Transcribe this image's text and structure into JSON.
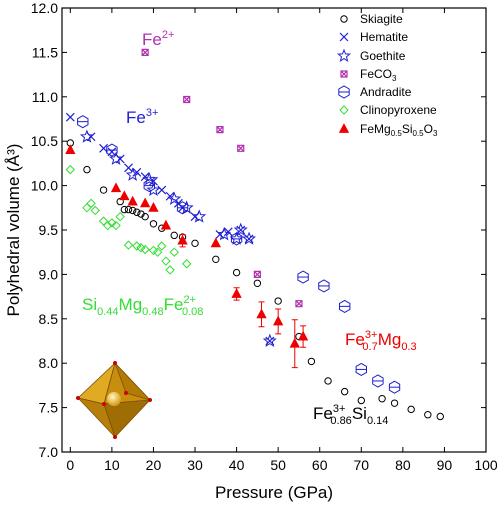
{
  "chart_data": {
    "type": "scatter",
    "xlabel": "Pressure (GPa)",
    "ylabel": "Polyhedral volume (Å³)",
    "xlim": [
      -2,
      100
    ],
    "ylim": [
      7.0,
      12.0
    ],
    "x_ticks": [
      0,
      10,
      20,
      30,
      40,
      50,
      60,
      70,
      80,
      90,
      100
    ],
    "y_ticks": [
      7.0,
      7.5,
      8.0,
      8.5,
      9.0,
      9.5,
      10.0,
      10.5,
      11.0,
      11.5,
      12.0
    ],
    "legend_position": "top-right",
    "series": [
      {
        "name": "Skiagite",
        "marker": "circle",
        "color": "#000000",
        "x": [
          0,
          4,
          8,
          12,
          13,
          14,
          15,
          16,
          17,
          18,
          20,
          22,
          25,
          27,
          30,
          35,
          40,
          45,
          50,
          55,
          58,
          62,
          66,
          70,
          75,
          78,
          82,
          86,
          89
        ],
        "y": [
          10.48,
          10.18,
          9.95,
          9.82,
          9.73,
          9.73,
          9.72,
          9.7,
          9.68,
          9.65,
          9.57,
          9.52,
          9.44,
          9.42,
          9.35,
          9.17,
          9.02,
          8.9,
          8.7,
          8.3,
          8.02,
          7.8,
          7.68,
          7.58,
          7.6,
          7.55,
          7.48,
          7.42,
          7.4
        ],
        "y_err": []
      },
      {
        "name": "Hematite",
        "marker": "x",
        "color": "#1f1fd1",
        "x": [
          0,
          5,
          8,
          10,
          12,
          14,
          16,
          18,
          20,
          22,
          24,
          26,
          27,
          30,
          36,
          38,
          41,
          43,
          48
        ],
        "y": [
          10.77,
          10.55,
          10.42,
          10.38,
          10.3,
          10.2,
          10.15,
          10.1,
          10.05,
          9.95,
          9.88,
          9.8,
          9.75,
          9.65,
          9.45,
          9.48,
          9.5,
          9.4,
          8.25
        ],
        "y_err": []
      },
      {
        "name": "Goethite",
        "marker": "star",
        "color": "#1f1fd1",
        "x": [
          4,
          11,
          15,
          19,
          20,
          25,
          28,
          31,
          37,
          40,
          41,
          43,
          48
        ],
        "y": [
          10.55,
          10.3,
          10.12,
          10.07,
          9.95,
          9.85,
          9.75,
          9.65,
          9.45,
          9.4,
          9.5,
          9.4,
          8.25
        ],
        "y_err": []
      },
      {
        "name": "FeCO₃",
        "marker": "square-x",
        "color": "#b030b0",
        "x": [
          18,
          28,
          36,
          41,
          45,
          55
        ],
        "y": [
          11.5,
          10.97,
          10.63,
          10.42,
          9.0,
          8.67
        ],
        "y_err": []
      },
      {
        "name": "Andradite",
        "marker": "hexagon",
        "color": "#1f1fd1",
        "x": [
          3,
          10,
          19,
          27,
          40,
          56,
          61,
          66,
          70,
          74,
          78
        ],
        "y": [
          10.72,
          10.4,
          10.0,
          9.75,
          9.4,
          8.97,
          8.87,
          8.64,
          7.93,
          7.8,
          7.73
        ],
        "y_err": []
      },
      {
        "name": "Clinopyroxene",
        "marker": "diamond",
        "color": "#33dd33",
        "x": [
          0,
          4,
          5,
          6,
          8,
          9,
          10,
          11,
          12,
          14,
          16,
          17,
          18,
          20,
          21,
          22,
          23,
          24,
          25,
          28
        ],
        "y": [
          10.18,
          9.75,
          9.8,
          9.72,
          9.6,
          9.55,
          9.58,
          9.55,
          9.65,
          9.33,
          9.32,
          9.3,
          9.28,
          9.27,
          9.25,
          9.32,
          9.15,
          9.05,
          9.25,
          9.12
        ],
        "y_err": []
      },
      {
        "name": "FeMg0.5Si0.5O3",
        "marker": "triangle",
        "color": "#ee0000",
        "x": [
          0,
          11,
          13,
          15,
          18,
          20,
          23,
          27,
          35,
          40,
          46,
          50,
          54,
          56
        ],
        "y": [
          10.4,
          9.97,
          9.88,
          9.82,
          9.8,
          9.75,
          9.55,
          9.38,
          9.35,
          8.78,
          8.55,
          8.47,
          8.22,
          8.3
        ],
        "y_err": [
          0,
          0,
          0,
          0,
          0,
          0,
          0,
          0.07,
          0,
          0.07,
          0.14,
          0.14,
          0.27,
          0.12
        ]
      }
    ],
    "annotations": [
      {
        "text": "Fe2+",
        "color": "#b030b0"
      },
      {
        "text": "Fe3+",
        "color": "#1f1fd1"
      },
      {
        "text": "Si0.44Mg0.48Fe2+0.08",
        "color": "#33dd33"
      },
      {
        "text": "Fe3+0.7Mg0.3",
        "color": "#ee0000"
      },
      {
        "text": "Fe3+0.86Si0.14",
        "color": "#000000"
      }
    ]
  },
  "labels": {
    "fe2": {
      "base": "Fe",
      "sup": "2+"
    },
    "fe3": {
      "base": "Fe",
      "sup": "3+"
    },
    "clino": {
      "a": "Si",
      "a_sub": "0.44",
      "b": "Mg",
      "b_sub": "0.48",
      "c": "Fe",
      "c_sup": "2+",
      "c_sub": "0.08"
    },
    "fe3mg": {
      "a": "Fe",
      "a_sup": "3+",
      "a_sub": "0.7",
      "b": "Mg",
      "b_sub": "0.3"
    },
    "fe3si": {
      "a": "Fe",
      "a_sup": "3+",
      "a_sub": "0.86",
      "b": "Si",
      "b_sub": "0.14"
    }
  },
  "legend": [
    {
      "label": "Skiagite"
    },
    {
      "label": "Hematite"
    },
    {
      "label": "Goethite"
    },
    {
      "label_base": "FeCO",
      "label_sub": "3"
    },
    {
      "label": "Andradite"
    },
    {
      "label": "Clinopyroxene"
    },
    {
      "label_a": "FeMg",
      "sub_a": "0.5",
      "label_b": "Si",
      "sub_b": "0.5",
      "label_c": "O",
      "sub_c": "3"
    }
  ],
  "colors": {
    "octahedron": "#d9a21b"
  }
}
